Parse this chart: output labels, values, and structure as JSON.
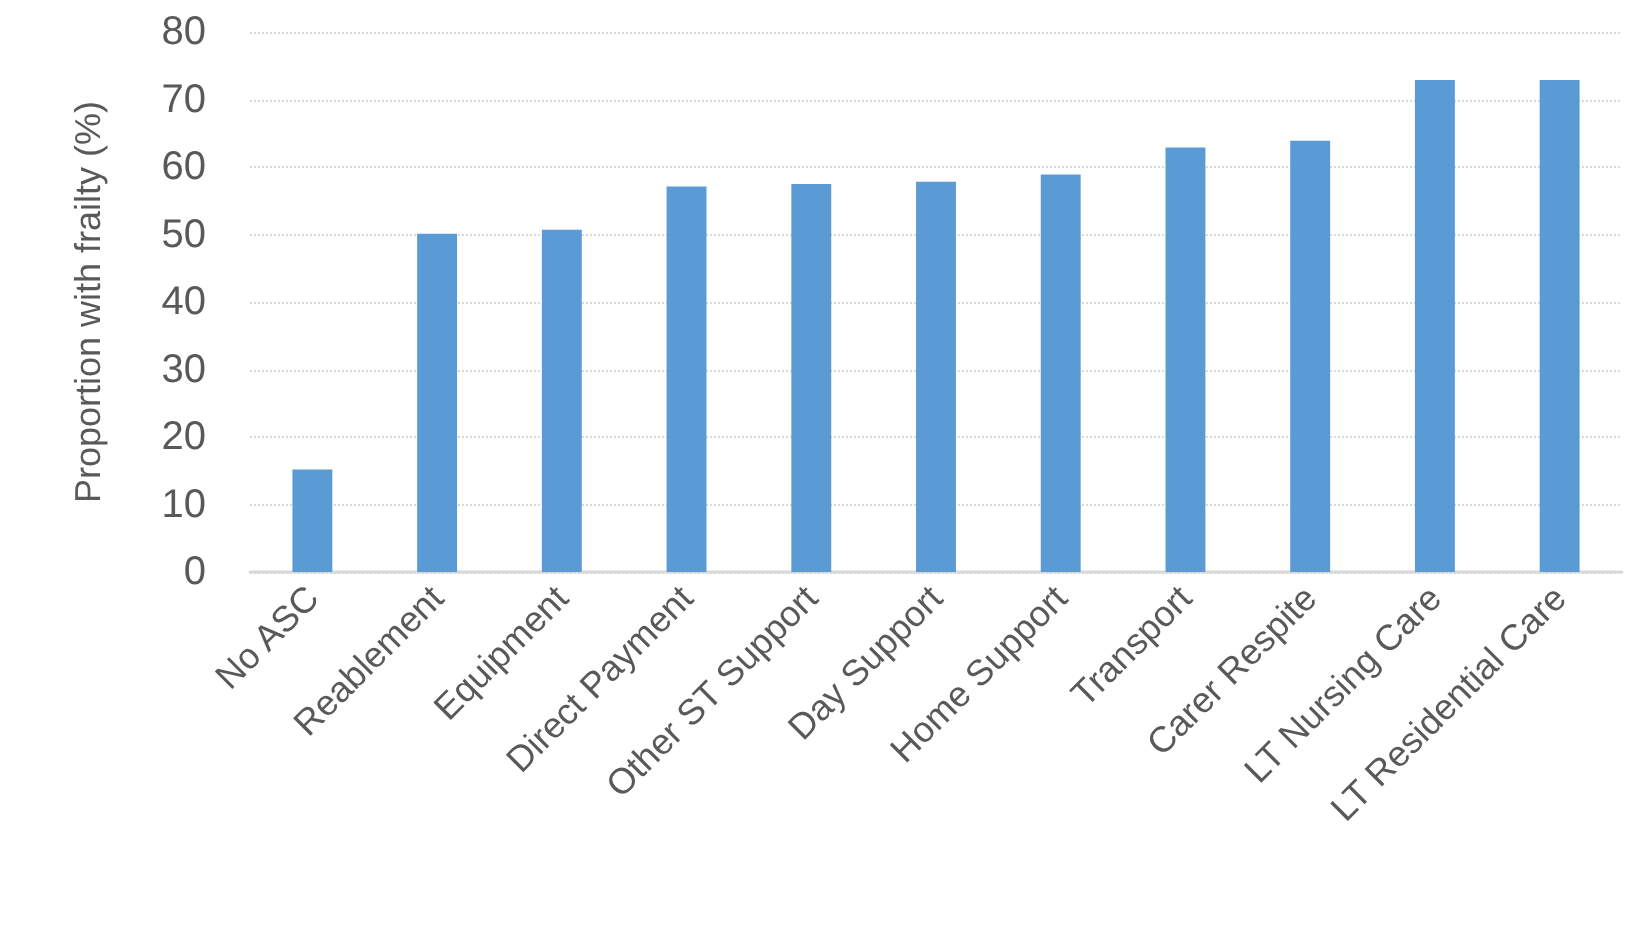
{
  "chart_data": {
    "type": "bar",
    "ylabel": "Proportion with frailty (%)",
    "categories": [
      "No ASC",
      "Reablement",
      "Equipment",
      "Direct Payment",
      "Other ST Support",
      "Day Support",
      "Home Support",
      "Transport",
      "Carer Respite",
      "LT Nursing Care",
      "LT Residential Care"
    ],
    "values": [
      15.2,
      50.1,
      50.7,
      57.1,
      57.5,
      57.8,
      58.9,
      62.9,
      63.9,
      72.9,
      72.9
    ],
    "color": "#5b9bd5",
    "ylim": [
      0,
      80
    ],
    "yticks": [
      0,
      10,
      20,
      30,
      40,
      50,
      60,
      70,
      80
    ],
    "grid": "y",
    "line_style": "dotted"
  }
}
